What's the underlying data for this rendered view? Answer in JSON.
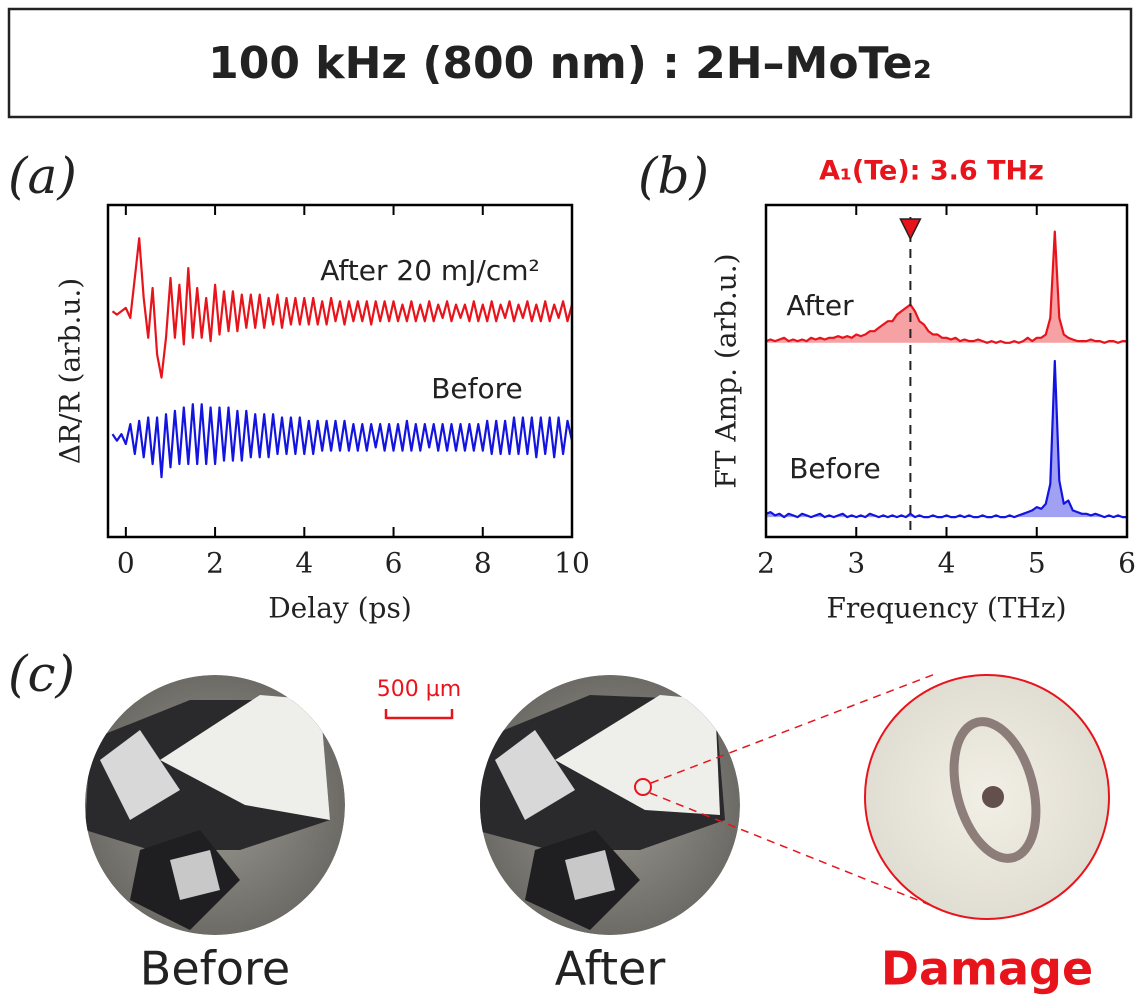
{
  "title": "100 kHz (800 nm) : 2H–MoTe₂",
  "chart_data": [
    {
      "type": "line",
      "panel_label": "(a)",
      "xlabel": "Delay (ps)",
      "ylabel": "ΔR/R (arb.u.)",
      "xlim": [
        -0.4,
        10
      ],
      "xticks": [
        0,
        2,
        4,
        6,
        8,
        10
      ],
      "ylim": [
        0,
        10
      ],
      "x": [
        -0.3,
        -0.2,
        -0.1,
        0,
        0.1,
        0.2,
        0.3,
        0.4,
        0.5,
        0.6,
        0.7,
        0.8,
        0.9,
        1,
        1.1,
        1.2,
        1.3,
        1.4,
        1.5,
        1.6,
        1.7,
        1.8,
        1.9,
        2,
        2.1,
        2.2,
        2.3,
        2.4,
        2.5,
        2.6,
        2.7,
        2.8,
        2.9,
        3,
        3.1,
        3.2,
        3.3,
        3.4,
        3.5,
        3.6,
        3.7,
        3.8,
        3.9,
        4,
        4.1,
        4.2,
        4.3,
        4.4,
        4.5,
        4.6,
        4.7,
        4.8,
        4.9,
        5,
        5.1,
        5.2,
        5.3,
        5.4,
        5.5,
        5.6,
        5.7,
        5.8,
        5.9,
        6,
        6.1,
        6.2,
        6.3,
        6.4,
        6.5,
        6.6,
        6.7,
        6.8,
        6.9,
        7,
        7.1,
        7.2,
        7.3,
        7.4,
        7.5,
        7.6,
        7.7,
        7.8,
        7.9,
        8,
        8.1,
        8.2,
        8.3,
        8.4,
        8.5,
        8.6,
        8.7,
        8.8,
        8.9,
        9,
        9.1,
        9.2,
        9.3,
        9.4,
        9.5,
        9.6,
        9.7,
        9.8,
        9.9,
        10
      ],
      "series": [
        {
          "name": "After 20 mJ/cm²",
          "color": "#e8141c",
          "values": [
            6.8,
            6.7,
            6.8,
            6.9,
            6.6,
            7.8,
            9.0,
            7.2,
            6.0,
            7.5,
            5.5,
            4.8,
            6.0,
            7.8,
            6.0,
            7.6,
            5.8,
            8.1,
            6.0,
            7.5,
            6.0,
            7.2,
            5.9,
            7.6,
            6.1,
            7.4,
            6.2,
            7.4,
            6.2,
            7.3,
            6.3,
            7.3,
            6.3,
            7.3,
            6.3,
            7.2,
            6.4,
            7.3,
            6.3,
            7.2,
            6.4,
            7.2,
            6.4,
            7.2,
            6.4,
            7.2,
            6.4,
            7.1,
            6.4,
            7.2,
            6.5,
            7.1,
            6.4,
            7.1,
            6.5,
            7.1,
            6.5,
            7.1,
            6.4,
            7.1,
            6.5,
            7.1,
            6.5,
            7.1,
            6.5,
            7.0,
            6.5,
            7.1,
            6.5,
            7.0,
            6.5,
            7.1,
            6.5,
            7.0,
            6.6,
            7.1,
            6.5,
            7.0,
            6.6,
            7.0,
            6.5,
            7.1,
            6.5,
            7.0,
            6.5,
            7.1,
            6.5,
            7.0,
            6.6,
            7.1,
            6.5,
            7.0,
            6.6,
            7.1,
            6.5,
            7.0,
            6.5,
            7.1,
            6.5,
            7.0,
            6.6,
            7.1,
            6.5,
            7.0
          ]
        },
        {
          "name": "Before",
          "color": "#1414e0",
          "values": [
            3.1,
            2.9,
            3.1,
            2.8,
            3.4,
            2.5,
            3.5,
            2.4,
            3.6,
            2.2,
            3.6,
            1.8,
            3.7,
            2.1,
            3.8,
            2.2,
            3.9,
            2.2,
            4.0,
            2.2,
            4.0,
            2.2,
            3.9,
            2.2,
            3.9,
            2.3,
            3.9,
            2.3,
            3.8,
            2.3,
            3.8,
            2.4,
            3.7,
            2.4,
            3.7,
            2.4,
            3.7,
            2.5,
            3.6,
            2.5,
            3.6,
            2.5,
            3.6,
            2.5,
            3.5,
            2.5,
            3.5,
            2.6,
            3.5,
            2.6,
            3.5,
            2.6,
            3.5,
            2.6,
            3.4,
            2.6,
            3.4,
            2.6,
            3.4,
            2.7,
            3.4,
            2.6,
            3.4,
            2.6,
            3.4,
            2.6,
            3.5,
            2.6,
            3.4,
            2.6,
            3.4,
            2.7,
            3.4,
            2.6,
            3.4,
            2.6,
            3.4,
            2.6,
            3.4,
            2.6,
            3.4,
            2.6,
            3.4,
            2.6,
            3.5,
            2.5,
            3.5,
            2.5,
            3.5,
            2.5,
            3.6,
            2.5,
            3.6,
            2.5,
            3.6,
            2.4,
            3.6,
            2.5,
            3.6,
            2.4,
            3.6,
            2.5,
            3.5,
            2.9
          ]
        }
      ]
    },
    {
      "type": "area",
      "panel_label": "(b)",
      "xlabel": "Frequency (THz)",
      "ylabel": "FT Amp. (arb.u.)",
      "xlim": [
        2,
        6
      ],
      "xticks": [
        2,
        3,
        4,
        5,
        6
      ],
      "ylim": [
        0,
        10
      ],
      "annotation": {
        "text": "A₁(Te): 3.6 THz",
        "x": 3.6
      },
      "x": [
        2,
        2.05,
        2.1,
        2.15,
        2.2,
        2.25,
        2.3,
        2.35,
        2.4,
        2.45,
        2.5,
        2.55,
        2.6,
        2.65,
        2.7,
        2.75,
        2.8,
        2.85,
        2.9,
        2.95,
        3,
        3.05,
        3.1,
        3.15,
        3.2,
        3.25,
        3.3,
        3.35,
        3.4,
        3.45,
        3.5,
        3.55,
        3.6,
        3.65,
        3.7,
        3.75,
        3.8,
        3.85,
        3.9,
        3.95,
        4,
        4.05,
        4.1,
        4.15,
        4.2,
        4.25,
        4.3,
        4.35,
        4.4,
        4.45,
        4.5,
        4.55,
        4.6,
        4.65,
        4.7,
        4.75,
        4.8,
        4.85,
        4.9,
        4.95,
        5,
        5.05,
        5.1,
        5.15,
        5.2,
        5.25,
        5.3,
        5.35,
        5.4,
        5.45,
        5.5,
        5.55,
        5.6,
        5.65,
        5.7,
        5.75,
        5.8,
        5.85,
        5.9,
        5.95,
        6
      ],
      "series": [
        {
          "name": "After",
          "color": "#e8141c",
          "values": [
            5.9,
            5.95,
            5.9,
            5.95,
            6.0,
            5.9,
            5.95,
            5.9,
            5.95,
            5.9,
            6.0,
            5.95,
            6.0,
            5.95,
            6.0,
            6.0,
            6.05,
            6.0,
            6.05,
            6.0,
            6.1,
            6.05,
            6.1,
            6.2,
            6.2,
            6.3,
            6.4,
            6.5,
            6.5,
            6.7,
            6.8,
            6.9,
            7.0,
            6.8,
            6.5,
            6.4,
            6.2,
            6.1,
            6.1,
            6.0,
            6.0,
            5.95,
            6.0,
            5.9,
            5.95,
            5.9,
            5.9,
            5.95,
            5.9,
            5.85,
            5.9,
            5.85,
            5.9,
            5.85,
            5.85,
            5.9,
            5.85,
            5.9,
            6.0,
            5.9,
            6.0,
            6.0,
            6.1,
            6.6,
            9.2,
            6.6,
            6.1,
            6.0,
            5.95,
            5.9,
            5.9,
            5.9,
            5.95,
            5.9,
            5.9,
            5.85,
            5.9,
            5.9,
            5.85,
            5.9,
            5.9
          ]
        },
        {
          "name": "Before",
          "color": "#1414e0",
          "values": [
            0.7,
            0.75,
            0.65,
            0.7,
            0.6,
            0.7,
            0.65,
            0.6,
            0.7,
            0.65,
            0.6,
            0.65,
            0.7,
            0.6,
            0.65,
            0.6,
            0.65,
            0.7,
            0.6,
            0.65,
            0.6,
            0.65,
            0.6,
            0.7,
            0.65,
            0.6,
            0.65,
            0.6,
            0.65,
            0.6,
            0.65,
            0.6,
            0.7,
            0.6,
            0.65,
            0.6,
            0.6,
            0.65,
            0.6,
            0.6,
            0.65,
            0.6,
            0.6,
            0.65,
            0.6,
            0.65,
            0.6,
            0.6,
            0.65,
            0.6,
            0.6,
            0.65,
            0.6,
            0.6,
            0.65,
            0.6,
            0.65,
            0.7,
            0.75,
            0.8,
            0.9,
            0.85,
            1.0,
            1.6,
            5.3,
            1.7,
            1.0,
            1.1,
            0.8,
            0.75,
            0.7,
            0.7,
            0.65,
            0.7,
            0.65,
            0.6,
            0.65,
            0.6,
            0.65,
            0.6,
            0.6
          ]
        }
      ]
    }
  ],
  "panel_c": {
    "label": "(c)",
    "scale_bar": "500 µm",
    "captions": [
      "Before",
      "After",
      "Damage"
    ]
  }
}
